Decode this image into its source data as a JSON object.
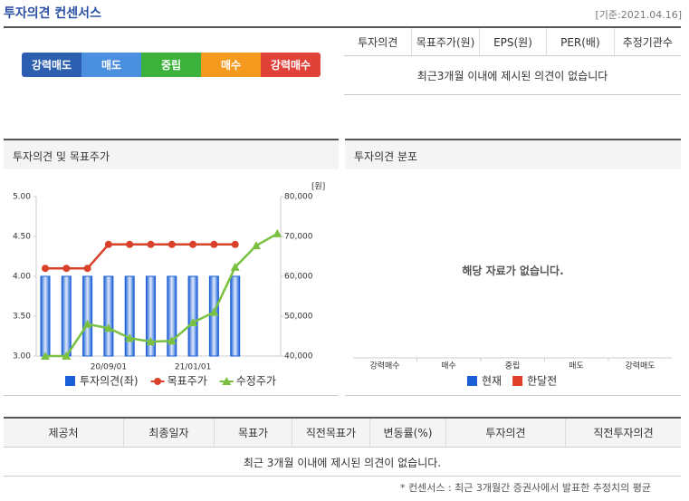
{
  "header": {
    "title": "투자의견 컨센서스",
    "date": "[기준:2021.04.16]"
  },
  "scale": [
    {
      "label": "강력매도",
      "color": "#2d5fb0"
    },
    {
      "label": "매도",
      "color": "#4b8fe0"
    },
    {
      "label": "중립",
      "color": "#3cb23c"
    },
    {
      "label": "매수",
      "color": "#f39a1f"
    },
    {
      "label": "강력매수",
      "color": "#e0423a"
    }
  ],
  "summary_table": {
    "columns": [
      "투자의견",
      "목표주가(원)",
      "EPS(원)",
      "PER(배)",
      "추정기관수"
    ],
    "message": "최근3개월 이내에 제시된 의견이 없습니다"
  },
  "chart_panel": {
    "title": "투자의견 및 목표주가"
  },
  "chart_data": {
    "type": "combo",
    "y2_unit": "[원]",
    "categories": [
      null,
      null,
      null,
      "20/09/01",
      null,
      null,
      null,
      "21/01/01",
      null,
      null,
      null,
      null
    ],
    "series": [
      {
        "name": "투자의견(좌)",
        "type": "bar",
        "color": "#1a5fd6",
        "values": [
          4,
          4,
          4,
          4,
          4,
          4,
          4,
          4,
          4,
          4,
          null,
          null
        ]
      },
      {
        "name": "목표주가",
        "type": "line",
        "axis": "y2",
        "marker": "circle",
        "color": "#d9412a",
        "values": [
          62000,
          62000,
          62000,
          68000,
          68000,
          68000,
          68000,
          68000,
          68000,
          68000,
          null,
          null
        ]
      },
      {
        "name": "수정주가",
        "type": "line",
        "axis": "y2",
        "marker": "triangle",
        "color": "#7ac142",
        "values": [
          40000,
          40000,
          48000,
          47000,
          44500,
          43600,
          43800,
          48400,
          51000,
          62300,
          67700,
          70700
        ]
      }
    ],
    "ylim": [
      3,
      5
    ],
    "yticks": [
      {
        "value": 3,
        "label": "3.00"
      },
      {
        "value": 3.5,
        "label": "3.50"
      },
      {
        "value": 4,
        "label": "4.00"
      },
      {
        "value": 4.5,
        "label": "4.50"
      },
      {
        "value": 5,
        "label": "5.00"
      }
    ],
    "y2lim": [
      40000,
      80000
    ],
    "y2ticks": [
      {
        "value": 40000,
        "label": "40,000"
      },
      {
        "value": 50000,
        "label": "50,000"
      },
      {
        "value": 60000,
        "label": "60,000"
      },
      {
        "value": 70000,
        "label": "70,000"
      },
      {
        "value": 80000,
        "label": "80,000"
      }
    ],
    "grid": false
  },
  "distribution": {
    "title": "투자의견 분포",
    "categories": [
      "강력매수",
      "매수",
      "중립",
      "매도",
      "강력매도"
    ],
    "message": "해당 자료가 없습니다.",
    "legend": [
      {
        "name": "현재",
        "color": "#1a5fd6"
      },
      {
        "name": "한달전",
        "color": "#e0402a"
      }
    ]
  },
  "detail_table": {
    "columns": [
      "제공처",
      "최종일자",
      "목표가",
      "직전목표가",
      "변동률(%)",
      "투자의견",
      "직전투자의견"
    ],
    "message": "최근 3개월 이내에 제시된 의견이 없습니다."
  },
  "footnote": "* 컨센서스 : 최근 3개월간 증권사에서 발표한 추정치의 평균"
}
